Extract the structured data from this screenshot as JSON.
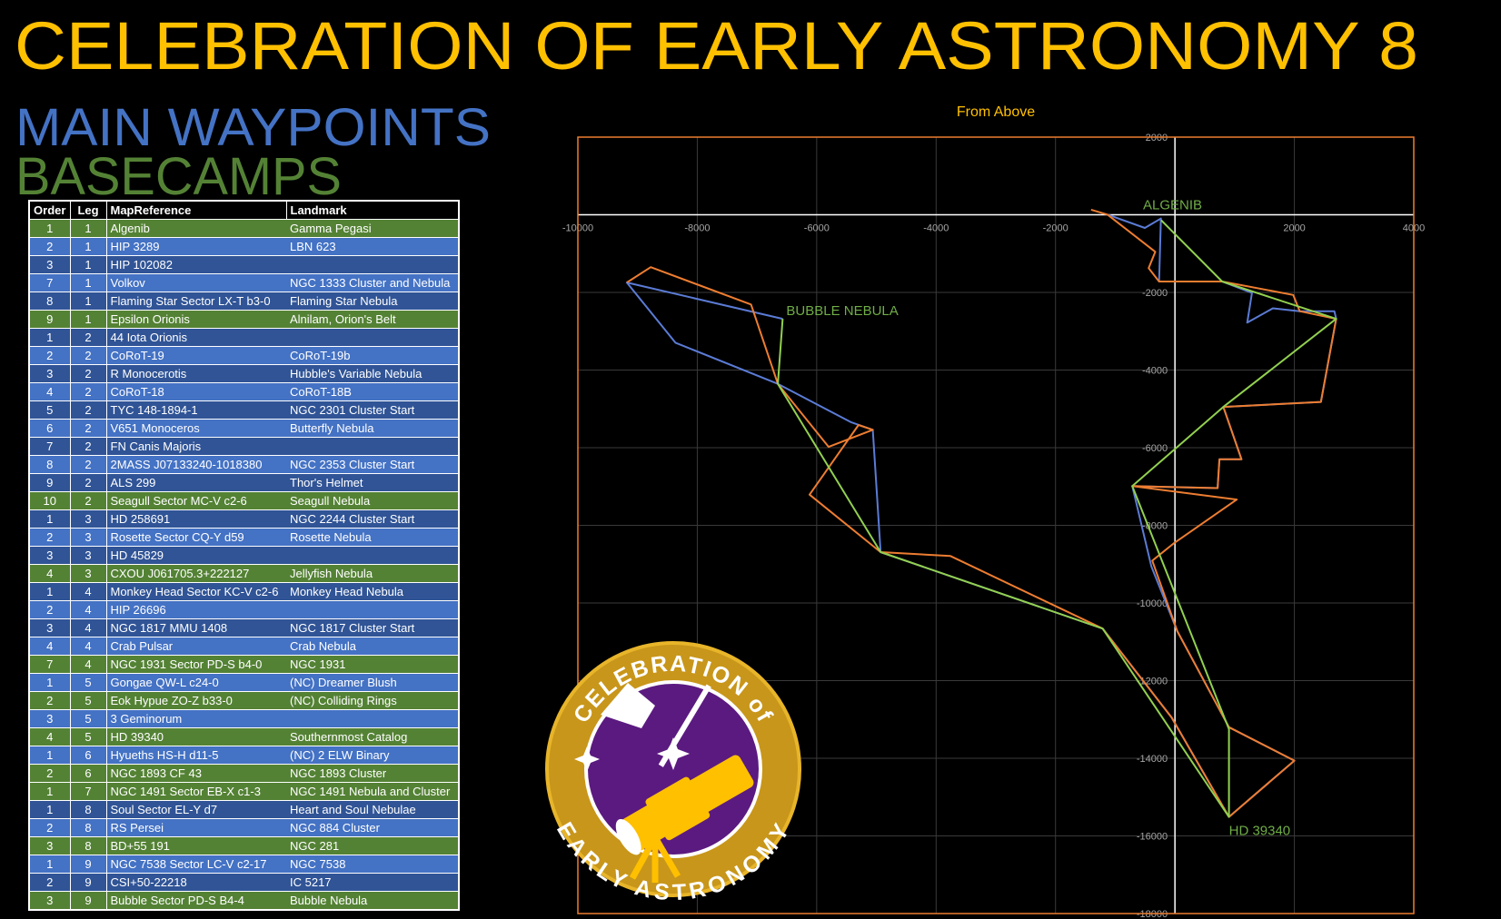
{
  "title": "CELEBRATION OF EARLY ASTRONOMY 8",
  "legend": [
    {
      "text": "MAIN WAYPOINTS",
      "color": "#4472c4"
    },
    {
      "text": "BASECAMPS",
      "color": "#548235"
    }
  ],
  "table": {
    "columns": [
      "Order",
      "Leg",
      "MapReference",
      "Landmark"
    ],
    "rows": [
      [
        "1",
        "1",
        "Algenib",
        "Gamma Pegasi"
      ],
      [
        "2",
        "1",
        "HIP 3289",
        "LBN 623"
      ],
      [
        "3",
        "1",
        "HIP 102082",
        null
      ],
      [
        "7",
        "1",
        "Volkov",
        "NGC 1333 Cluster and Nebula"
      ],
      [
        "8",
        "1",
        "Flaming Star Sector LX-T b3-0",
        "Flaming Star Nebula"
      ],
      [
        "9",
        "1",
        "Epsilon Orionis",
        "Alnilam, Orion's Belt"
      ],
      [
        "1",
        "2",
        "44 Iota Orionis",
        null
      ],
      [
        "2",
        "2",
        "CoRoT-19",
        "CoRoT-19b"
      ],
      [
        "3",
        "2",
        "R Monocerotis",
        "Hubble's Variable Nebula"
      ],
      [
        "4",
        "2",
        "CoRoT-18",
        "CoRoT-18B"
      ],
      [
        "5",
        "2",
        "TYC 148-1894-1",
        "NGC 2301 Cluster Start"
      ],
      [
        "6",
        "2",
        "V651 Monoceros",
        "Butterfly Nebula"
      ],
      [
        "7",
        "2",
        "FN Canis Majoris",
        null
      ],
      [
        "8",
        "2",
        "2MASS J07133240-1018380",
        "NGC 2353 Cluster Start"
      ],
      [
        "9",
        "2",
        "ALS 299",
        "Thor's Helmet"
      ],
      [
        "10",
        "2",
        "Seagull Sector MC-V c2-6",
        "Seagull Nebula"
      ],
      [
        "1",
        "3",
        "HD 258691",
        "NGC 2244 Cluster Start"
      ],
      [
        "2",
        "3",
        "Rosette Sector CQ-Y d59",
        "Rosette Nebula"
      ],
      [
        "3",
        "3",
        "HD 45829",
        null
      ],
      [
        "4",
        "3",
        "CXOU J061705.3+222127",
        "Jellyfish Nebula"
      ],
      [
        "1",
        "4",
        "Monkey Head Sector KC-V c2-6",
        "Monkey Head Nebula"
      ],
      [
        "2",
        "4",
        "HIP 26696",
        null
      ],
      [
        "3",
        "4",
        "NGC 1817 MMU 1408",
        "NGC 1817 Cluster Start"
      ],
      [
        "4",
        "4",
        "Crab Pulsar",
        "Crab Nebula"
      ],
      [
        "7",
        "4",
        "NGC 1931 Sector PD-S b4-0",
        "NGC 1931"
      ],
      [
        "1",
        "5",
        "Gongae QW-L c24-0",
        "(NC) Dreamer Blush"
      ],
      [
        "2",
        "5",
        "Eok Hypue ZO-Z b33-0",
        "(NC) Colliding Rings"
      ],
      [
        "3",
        "5",
        "3 Geminorum",
        null
      ],
      [
        "4",
        "5",
        "HD 39340",
        "Southernmost Catalog"
      ],
      [
        "1",
        "6",
        "Hyueths HS-H d11-5",
        "(NC) 2 ELW Binary"
      ],
      [
        "2",
        "6",
        "NGC 1893 CF 43",
        "NGC 1893 Cluster"
      ],
      [
        "1",
        "7",
        "NGC 1491 Sector EB-X c1-3",
        "NGC 1491 Nebula and Cluster"
      ],
      [
        "1",
        "8",
        "Soul Sector EL-Y d7",
        "Heart and Soul Nebulae"
      ],
      [
        "2",
        "8",
        "RS Persei",
        "NGC 884 Cluster"
      ],
      [
        "3",
        "8",
        "BD+55 191",
        "NGC 281"
      ],
      [
        "1",
        "9",
        "NGC 7538 Sector LC-V c2-17",
        "NGC 7538"
      ],
      [
        "2",
        "9",
        "CSI+50-22218",
        "IC 5217"
      ],
      [
        "3",
        "9",
        "Bubble Sector PD-S B4-4",
        "Bubble Nebula"
      ]
    ],
    "row_colors": [
      "#548235",
      "#4472c4",
      "#305496",
      "#4472c4",
      "#305496",
      "#548235",
      "#305496",
      "#4472c4",
      "#305496",
      "#4472c4",
      "#305496",
      "#4472c4",
      "#305496",
      "#4472c4",
      "#305496",
      "#548235",
      "#305496",
      "#4472c4",
      "#305496",
      "#548235",
      "#305496",
      "#4472c4",
      "#305496",
      "#4472c4",
      "#548235",
      "#4472c4",
      "#548235",
      "#4472c4",
      "#548235",
      "#4472c4",
      "#548235",
      "#548235",
      "#305496",
      "#4472c4",
      "#548235",
      "#4472c4",
      "#305496",
      "#548235"
    ]
  },
  "chart_data": {
    "type": "line",
    "title": "From Above",
    "xlim": [
      -10000,
      4000
    ],
    "ylim": [
      -18000,
      2000
    ],
    "xticks": [
      -10000,
      -8000,
      -6000,
      -4000,
      -2000,
      2000,
      4000
    ],
    "yticks": [
      2000,
      -2000,
      -4000,
      -6000,
      -8000,
      -10000,
      -12000,
      -14000,
      -16000,
      -18000
    ],
    "grid": true,
    "series": [
      {
        "color": "#5b7bd5",
        "x": [
          -1130,
          -505,
          -235,
          -265,
          790,
          1290,
          1210,
          1640,
          2090,
          2670,
          2700,
          2445,
          810,
          1115,
          745,
          715,
          -715,
          -395,
          40,
          905,
          2000,
          905,
          -55,
          -1210,
          -4930,
          -5060,
          -5430,
          -6650,
          -8365,
          -9180,
          -6570
        ],
        "values": [
          5,
          -340,
          -95,
          -1720,
          -1720,
          -2015,
          -2780,
          -2410,
          -2485,
          -2485,
          -2680,
          -4820,
          -4950,
          -6300,
          -6300,
          -7040,
          -6990,
          -9060,
          -10730,
          -13200,
          -14060,
          -15510,
          -12950,
          -10660,
          -8690,
          -5540,
          -5340,
          -4355,
          -3295,
          -1745,
          -2680
        ]
      },
      {
        "color": "#ed7d31",
        "x": [
          -1405,
          -1130,
          -330,
          -440,
          -265,
          790,
          1980,
          2090,
          2700,
          2445,
          810,
          1115,
          745,
          715,
          -715,
          1035,
          -25,
          -380,
          40,
          905,
          2000,
          905,
          -55,
          -1210,
          -3760,
          -4930,
          -6120,
          -5300,
          -5060,
          -5800,
          -6650,
          -7100,
          -8780,
          -9180
        ],
        "values": [
          130,
          5,
          -955,
          -1375,
          -1720,
          -1720,
          -2065,
          -2485,
          -2680,
          -4820,
          -4950,
          -6300,
          -6300,
          -7040,
          -6990,
          -7335,
          -8470,
          -8910,
          -10730,
          -13200,
          -14060,
          -15510,
          -12950,
          -10660,
          -8790,
          -8690,
          -7210,
          -5415,
          -5540,
          -5980,
          -4355,
          -2310,
          -1350,
          -1745
        ]
      },
      {
        "color": "#92d050",
        "x": [
          -230,
          790,
          2700,
          810,
          -715,
          905,
          905,
          -1210,
          -4930,
          -6650,
          -6570
        ],
        "values": [
          -140,
          -1720,
          -2680,
          -4950,
          -6990,
          -13250,
          -15510,
          -10660,
          -8690,
          -4355,
          -2680
        ]
      }
    ],
    "annotations": [
      {
        "text": "ALGENIB",
        "x": -230,
        "y": -140
      },
      {
        "text": "BUBBLE NEBULA",
        "x": -6570,
        "y": -2680
      },
      {
        "text": "HD 39340",
        "x": 905,
        "y": -15510
      }
    ]
  },
  "badge": {
    "top": "CELEBRATION of",
    "bottom": "EARLY ASTRONOMY"
  }
}
